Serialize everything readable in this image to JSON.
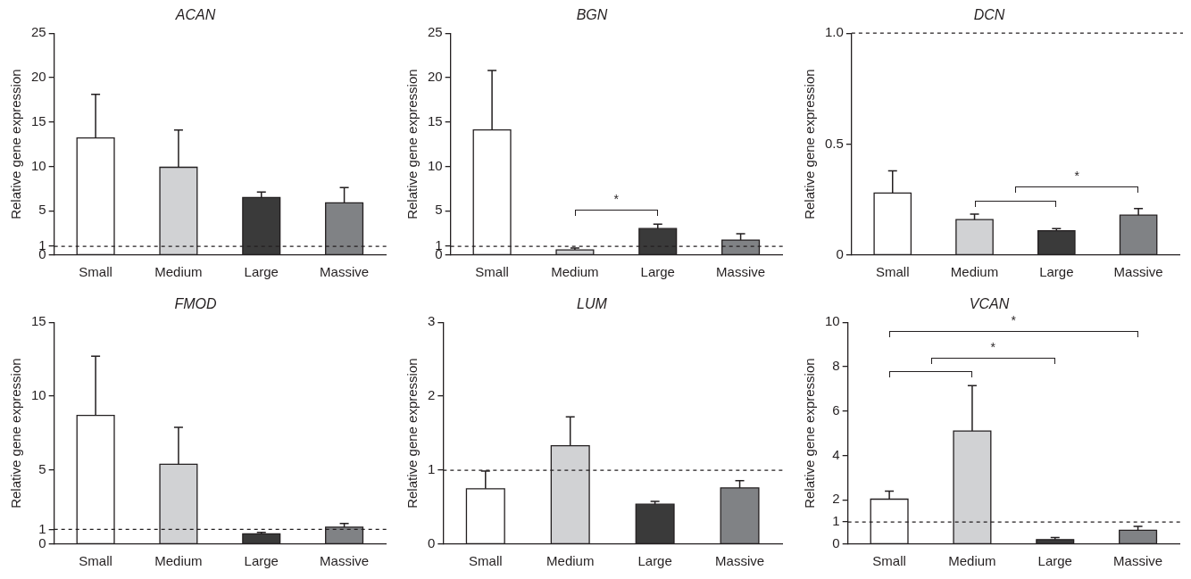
{
  "chart_data": [
    {
      "type": "bar",
      "title": "ACAN",
      "ylabel": "Relative gene expression",
      "categories": [
        "Small",
        "Medium",
        "Large",
        "Massive"
      ],
      "values": [
        13.2,
        9.9,
        6.5,
        5.9
      ],
      "errors": [
        [
          13.2,
          18.1
        ],
        [
          9.9,
          14.1
        ],
        [
          6.5,
          7.1
        ],
        [
          5.9,
          7.6
        ]
      ],
      "colors": [
        "#ffffff",
        "#d1d2d4",
        "#3a3a3a",
        "#808285"
      ],
      "ylim": [
        0,
        25
      ],
      "yticks": [
        0,
        1,
        5,
        10,
        15,
        20,
        25
      ],
      "ref_lines": [
        {
          "axis": "y",
          "value": 1,
          "color": "#231f20",
          "line_style": "dashed"
        }
      ]
    },
    {
      "type": "bar",
      "title": "BGN",
      "ylabel": "Relative gene expression",
      "categories": [
        "Small",
        "Medium",
        "Large",
        "Massive"
      ],
      "values": [
        14.1,
        0.6,
        3.0,
        1.7
      ],
      "errors": [
        [
          14.1,
          20.8
        ],
        [
          0.6,
          0.8
        ],
        [
          3.0,
          3.5
        ],
        [
          1.7,
          2.4
        ]
      ],
      "colors": [
        "#ffffff",
        "#d1d2d4",
        "#3a3a3a",
        "#808285"
      ],
      "ylim": [
        0,
        25
      ],
      "yticks": [
        0,
        1,
        5,
        10,
        15,
        20,
        25
      ],
      "ref_lines": [
        {
          "axis": "y",
          "value": 1,
          "color": "#231f20",
          "line_style": "dashed"
        }
      ],
      "annotations": [
        "*"
      ]
    },
    {
      "type": "bar",
      "title": "DCN",
      "ylabel": "Relative gene expression",
      "categories": [
        "Small",
        "Medium",
        "Large",
        "Massive"
      ],
      "values": [
        0.28,
        0.16,
        0.11,
        0.18
      ],
      "errors": [
        [
          0.28,
          0.38
        ],
        [
          0.16,
          0.185
        ],
        [
          0.11,
          0.12
        ],
        [
          0.18,
          0.21
        ]
      ],
      "colors": [
        "#ffffff",
        "#d1d2d4",
        "#3a3a3a",
        "#808285"
      ],
      "ylim": [
        0,
        1
      ],
      "yticks": [
        0,
        0.5,
        {
          "value": 1,
          "label": "1.0"
        }
      ],
      "ref_lines": [
        {
          "axis": "y",
          "value": 1,
          "color": "#231f20",
          "line_style": "dashed"
        }
      ],
      "annotations": [
        "*"
      ]
    },
    {
      "type": "bar",
      "title": "FMOD",
      "ylabel": "Relative gene expression",
      "categories": [
        "Small",
        "Medium",
        "Large",
        "Massive"
      ],
      "values": [
        8.7,
        5.4,
        0.7,
        1.15
      ],
      "errors": [
        [
          8.7,
          12.7
        ],
        [
          5.4,
          7.9
        ],
        [
          0.7,
          0.8
        ],
        [
          1.15,
          1.4
        ]
      ],
      "colors": [
        "#ffffff",
        "#d1d2d4",
        "#3a3a3a",
        "#808285"
      ],
      "ylim": [
        0,
        15
      ],
      "yticks": [
        0,
        1,
        5,
        10,
        15
      ],
      "ref_lines": [
        {
          "axis": "y",
          "value": 1,
          "color": "#231f20",
          "line_style": "dashed"
        }
      ]
    },
    {
      "type": "bar",
      "title": "LUM",
      "ylabel": "Relative gene expression",
      "categories": [
        "Small",
        "Medium",
        "Large",
        "Massive"
      ],
      "values": [
        0.75,
        1.33,
        0.54,
        0.76
      ],
      "errors": [
        [
          0.75,
          0.99
        ],
        [
          1.33,
          1.72
        ],
        [
          0.54,
          0.58
        ],
        [
          0.76,
          0.86
        ]
      ],
      "colors": [
        "#ffffff",
        "#d1d2d4",
        "#3a3a3a",
        "#808285"
      ],
      "ylim": [
        0,
        3
      ],
      "yticks": [
        0,
        1,
        2,
        3
      ],
      "ref_lines": [
        {
          "axis": "y",
          "value": 1,
          "color": "#231f20",
          "line_style": "dashed"
        }
      ]
    },
    {
      "type": "bar",
      "title": "VCAN",
      "ylabel": "Relative gene expression",
      "categories": [
        "Small",
        "Medium",
        "Large",
        "Massive"
      ],
      "values": [
        2.03,
        5.1,
        0.21,
        0.63
      ],
      "errors": [
        [
          2.03,
          2.39
        ],
        [
          5.1,
          7.14
        ],
        [
          0.21,
          0.3
        ],
        [
          0.63,
          0.8
        ]
      ],
      "colors": [
        "#ffffff",
        "#d1d2d4",
        "#3a3a3a",
        "#808285"
      ],
      "ylim": [
        0,
        10
      ],
      "yticks": [
        0,
        1,
        2,
        4,
        6,
        8,
        10
      ],
      "ref_lines": [
        {
          "axis": "y",
          "value": 1,
          "color": "#231f20",
          "line_style": "dashed"
        }
      ],
      "annotations": [
        "*",
        "*"
      ]
    }
  ]
}
